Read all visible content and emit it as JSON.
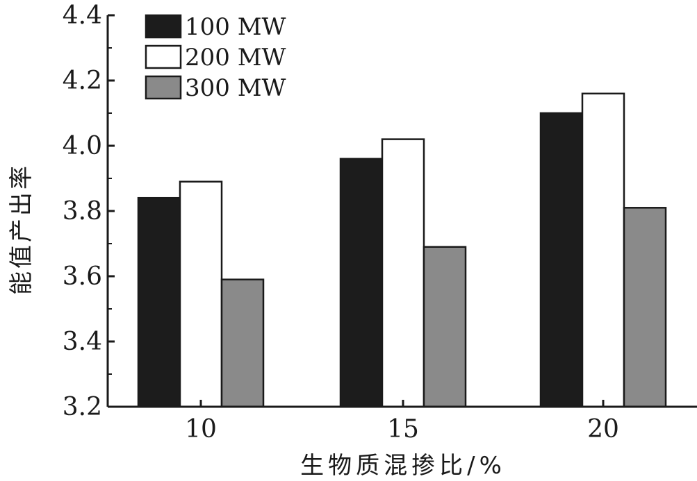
{
  "chart_data": {
    "type": "bar",
    "categories": [
      "10",
      "15",
      "20"
    ],
    "series": [
      {
        "name": "100 MW",
        "values": [
          3.84,
          3.96,
          4.1
        ],
        "color": "#1c1c1c"
      },
      {
        "name": "200 MW",
        "values": [
          3.89,
          4.02,
          4.16
        ],
        "color": "#ffffff"
      },
      {
        "name": "300 MW",
        "values": [
          3.59,
          3.69,
          3.81
        ],
        "color": "#8a8a8a"
      }
    ],
    "xlabel": "生物质混掺比/%",
    "ylabel": "能值产出率",
    "ylim": [
      3.2,
      4.4
    ],
    "yticks": [
      "3.2",
      "3.4",
      "3.6",
      "3.8",
      "4.0",
      "4.2",
      "4.4"
    ],
    "grid": false,
    "legend_position": "top-left"
  }
}
